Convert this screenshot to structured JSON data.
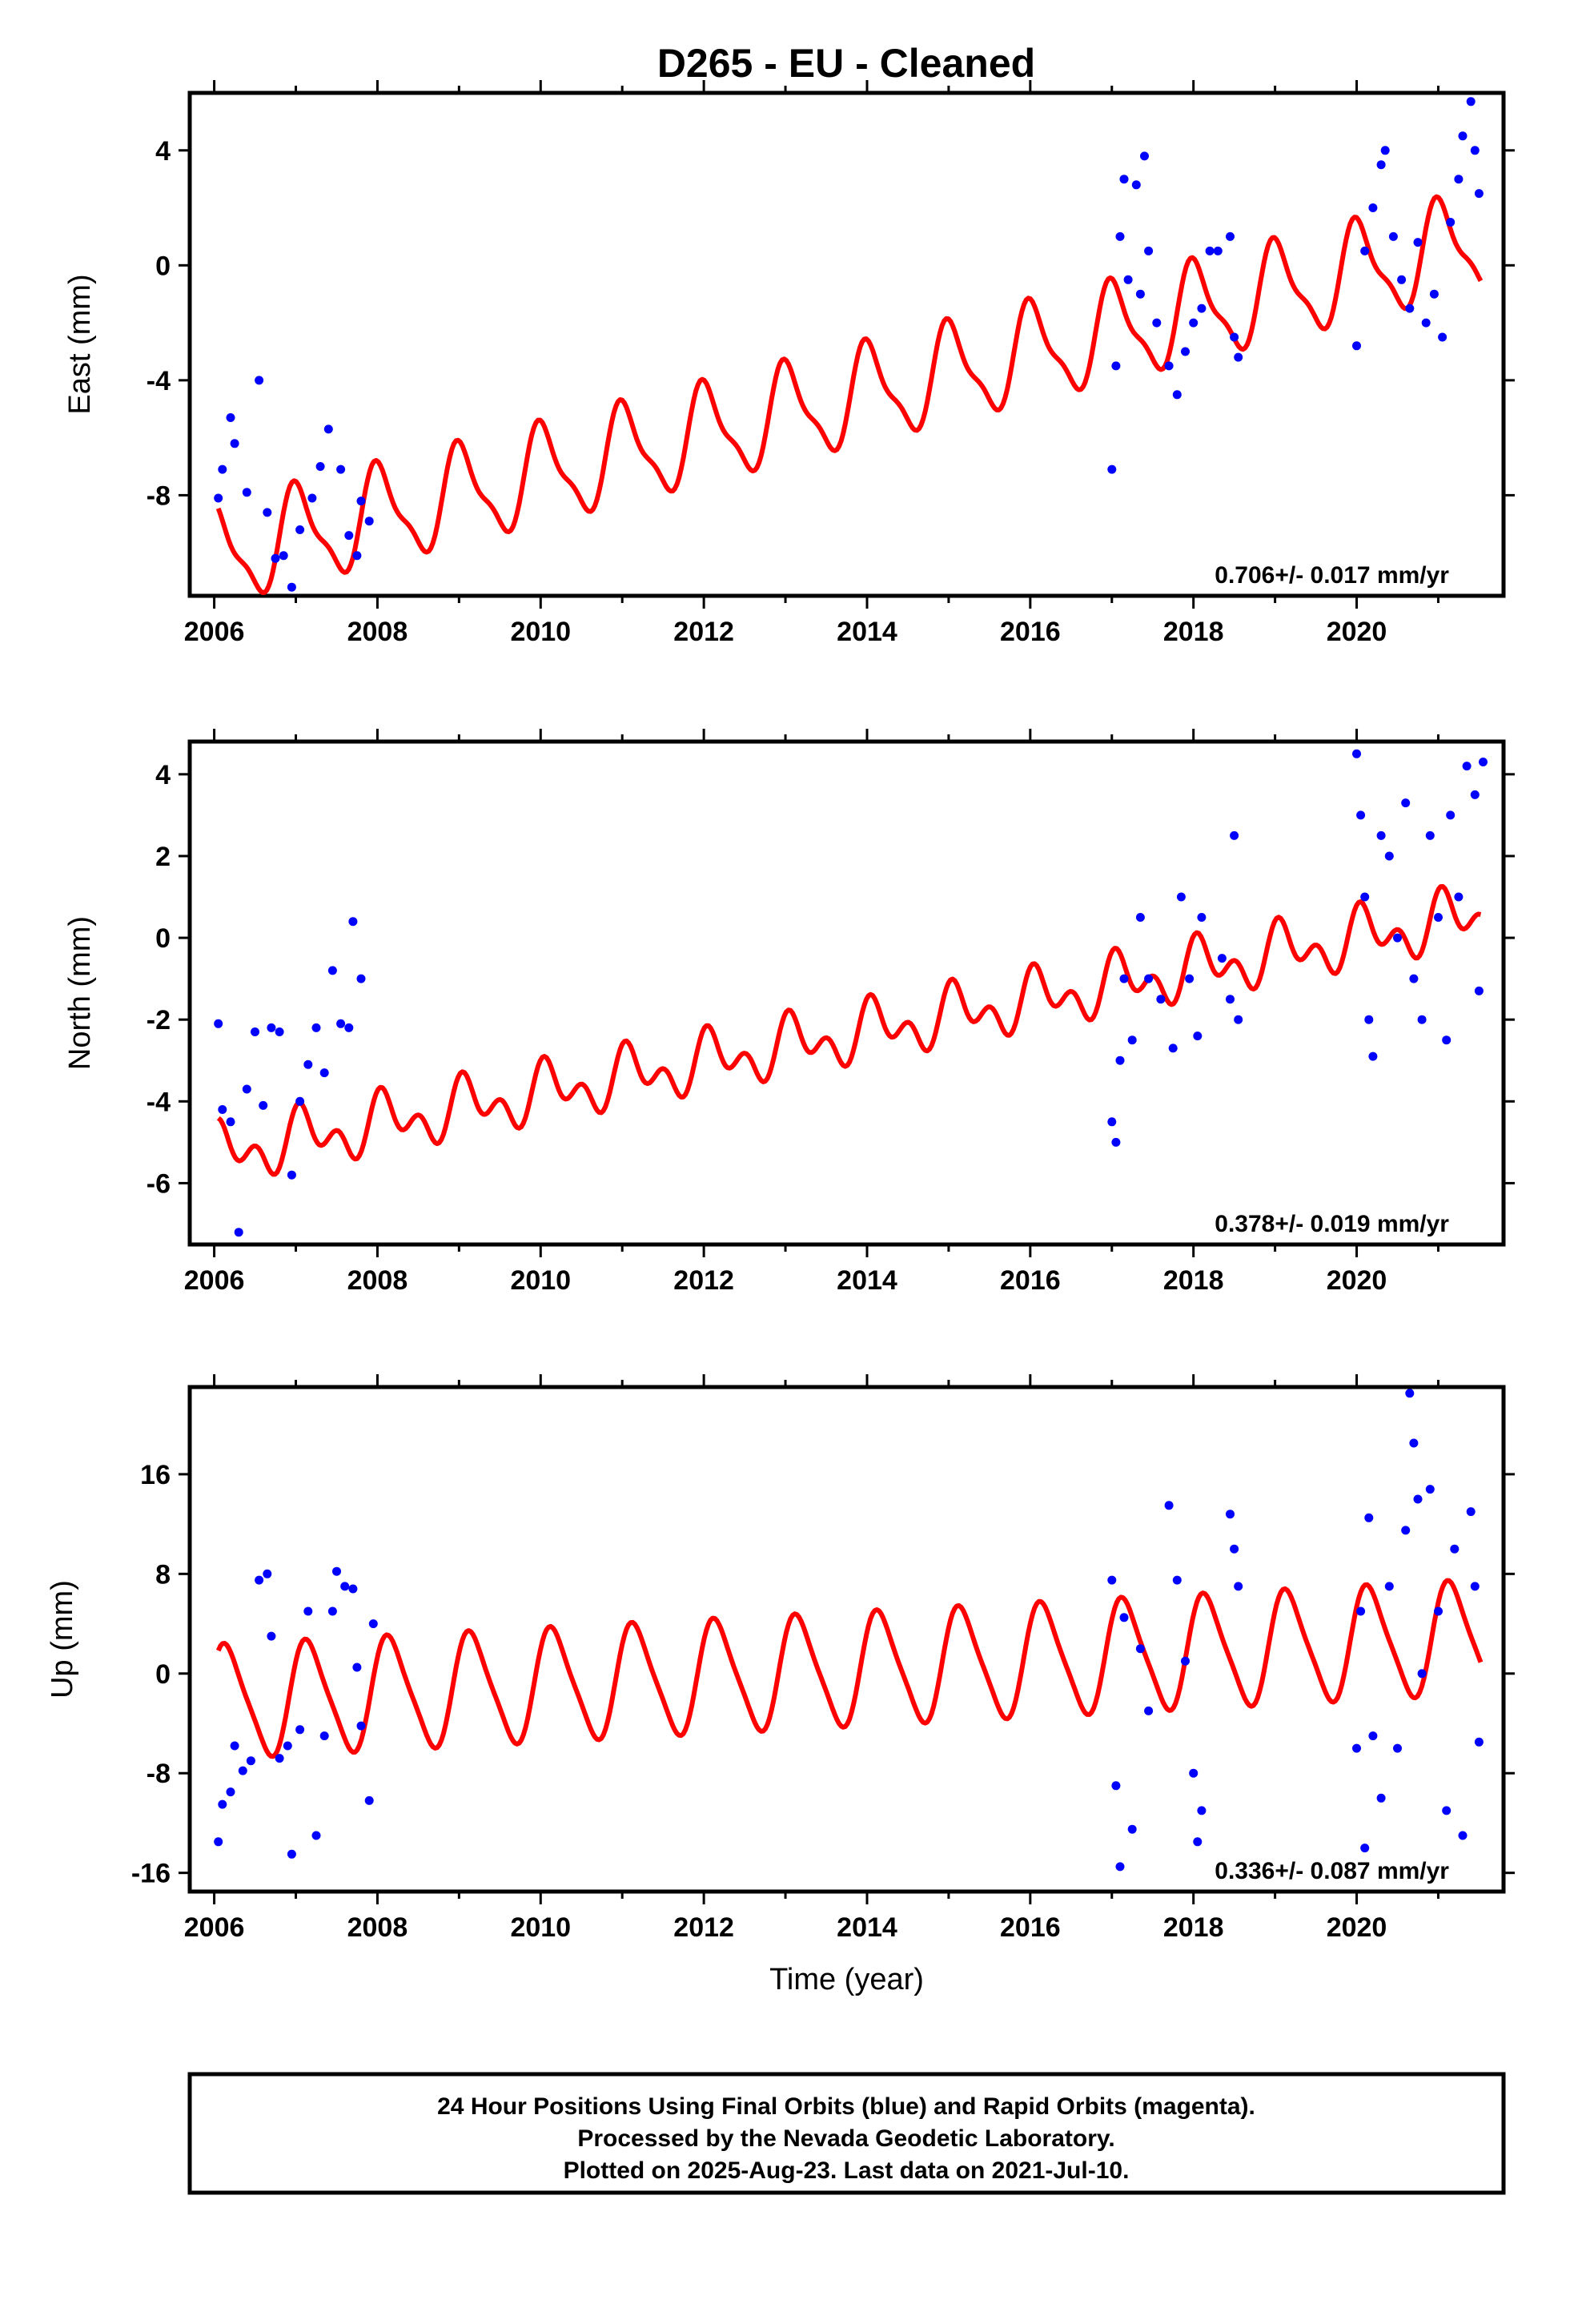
{
  "chart_title": "D265  - EU - Cleaned",
  "colors": {
    "points": "#0000ff",
    "model": "#ff0000",
    "frame": "#000000"
  },
  "caption": {
    "line1": "24 Hour Positions Using Final Orbits (blue) and Rapid Orbits (magenta).",
    "line2": "Processed by the Nevada Geodetic Laboratory.",
    "line3": "Plotted on 2025-Aug-23. Last data on 2021-Jul-10."
  },
  "chart_data": [
    {
      "type": "scatter",
      "ylabel": "East (mm)",
      "xlabel": "",
      "xlim": [
        2005.7,
        2021.8
      ],
      "ylim": [
        -11.5,
        6.0
      ],
      "xticks": [
        "2006",
        "2008",
        "2010",
        "2012",
        "2014",
        "2016",
        "2018",
        "2020"
      ],
      "yticks": [
        "4",
        "0",
        "-4",
        "-8"
      ],
      "rate_label": "0.706+/- 0.017 mm/yr",
      "model": {
        "y0": -10.1,
        "rate": 0.706,
        "amp_annual": 1.6,
        "phase_annual": 1.4,
        "amp_semi": 0.5,
        "phase_semi": 2.4
      },
      "series": [
        {
          "values": [
            [
              2006.05,
              -8.1
            ],
            [
              2006.1,
              -7.1
            ],
            [
              2006.2,
              -5.3
            ],
            [
              2006.25,
              -6.2
            ],
            [
              2006.4,
              -7.9
            ],
            [
              2006.55,
              -4.0
            ],
            [
              2006.65,
              -8.6
            ],
            [
              2006.75,
              -10.2
            ],
            [
              2006.85,
              -10.1
            ],
            [
              2006.95,
              -11.2
            ],
            [
              2007.05,
              -9.2
            ],
            [
              2007.2,
              -8.1
            ],
            [
              2007.3,
              -7.0
            ],
            [
              2007.4,
              -5.7
            ],
            [
              2007.55,
              -7.1
            ],
            [
              2007.65,
              -9.4
            ],
            [
              2007.75,
              -10.1
            ],
            [
              2007.8,
              -8.2
            ],
            [
              2007.9,
              -8.9
            ],
            [
              2017.0,
              -7.1
            ],
            [
              2017.05,
              -3.5
            ],
            [
              2017.1,
              1.0
            ],
            [
              2017.15,
              3.0
            ],
            [
              2017.2,
              -0.5
            ],
            [
              2017.3,
              2.8
            ],
            [
              2017.35,
              -1.0
            ],
            [
              2017.4,
              3.8
            ],
            [
              2017.45,
              0.5
            ],
            [
              2017.55,
              -2.0
            ],
            [
              2017.7,
              -3.5
            ],
            [
              2017.8,
              -4.5
            ],
            [
              2017.9,
              -3.0
            ],
            [
              2018.0,
              -2.0
            ],
            [
              2018.1,
              -1.5
            ],
            [
              2018.2,
              0.5
            ],
            [
              2018.3,
              0.5
            ],
            [
              2018.45,
              1.0
            ],
            [
              2018.5,
              -2.5
            ],
            [
              2018.55,
              -3.2
            ],
            [
              2020.0,
              -2.8
            ],
            [
              2020.1,
              0.5
            ],
            [
              2020.2,
              2.0
            ],
            [
              2020.3,
              3.5
            ],
            [
              2020.35,
              4.0
            ],
            [
              2020.45,
              1.0
            ],
            [
              2020.55,
              -0.5
            ],
            [
              2020.65,
              -1.5
            ],
            [
              2020.75,
              0.8
            ],
            [
              2020.85,
              -2.0
            ],
            [
              2020.95,
              -1.0
            ],
            [
              2021.05,
              -2.5
            ],
            [
              2021.15,
              1.5
            ],
            [
              2021.25,
              3.0
            ],
            [
              2021.3,
              4.5
            ],
            [
              2021.4,
              5.7
            ],
            [
              2021.45,
              4.0
            ],
            [
              2021.5,
              2.5
            ]
          ]
        }
      ]
    },
    {
      "type": "scatter",
      "ylabel": "North (mm)",
      "xlabel": "",
      "xlim": [
        2005.7,
        2021.8
      ],
      "ylim": [
        -7.5,
        4.8
      ],
      "xticks": [
        "2006",
        "2008",
        "2010",
        "2012",
        "2014",
        "2016",
        "2018",
        "2020"
      ],
      "yticks": [
        "4",
        "2",
        "0",
        "-2",
        "-4",
        "-6"
      ],
      "rate_label": "0.378+/- 0.019 mm/yr",
      "model": {
        "y0": -5.3,
        "rate": 0.378,
        "amp_annual": 0.5,
        "phase_annual": 0.9,
        "amp_semi": 0.45,
        "phase_semi": 1.3
      },
      "series": [
        {
          "values": [
            [
              2006.05,
              -2.1
            ],
            [
              2006.1,
              -4.2
            ],
            [
              2006.2,
              -4.5
            ],
            [
              2006.3,
              -7.2
            ],
            [
              2006.4,
              -3.7
            ],
            [
              2006.5,
              -2.3
            ],
            [
              2006.6,
              -4.1
            ],
            [
              2006.7,
              -2.2
            ],
            [
              2006.8,
              -2.3
            ],
            [
              2006.95,
              -5.8
            ],
            [
              2007.05,
              -4.0
            ],
            [
              2007.15,
              -3.1
            ],
            [
              2007.25,
              -2.2
            ],
            [
              2007.35,
              -3.3
            ],
            [
              2007.45,
              -0.8
            ],
            [
              2007.55,
              -2.1
            ],
            [
              2007.65,
              -2.2
            ],
            [
              2007.7,
              0.4
            ],
            [
              2007.8,
              -1.0
            ],
            [
              2017.0,
              -4.5
            ],
            [
              2017.05,
              -5.0
            ],
            [
              2017.1,
              -3.0
            ],
            [
              2017.15,
              -1.0
            ],
            [
              2017.25,
              -2.5
            ],
            [
              2017.35,
              0.5
            ],
            [
              2017.45,
              -1.0
            ],
            [
              2017.6,
              -1.5
            ],
            [
              2017.75,
              -2.7
            ],
            [
              2017.85,
              1.0
            ],
            [
              2017.95,
              -1.0
            ],
            [
              2018.05,
              -2.4
            ],
            [
              2018.1,
              0.5
            ],
            [
              2018.35,
              -0.5
            ],
            [
              2018.45,
              -1.5
            ],
            [
              2018.5,
              2.5
            ],
            [
              2018.55,
              -2.0
            ],
            [
              2020.0,
              4.5
            ],
            [
              2020.05,
              3.0
            ],
            [
              2020.1,
              1.0
            ],
            [
              2020.15,
              -2.0
            ],
            [
              2020.2,
              -2.9
            ],
            [
              2020.3,
              2.5
            ],
            [
              2020.4,
              2.0
            ],
            [
              2020.5,
              0.0
            ],
            [
              2020.6,
              3.3
            ],
            [
              2020.7,
              -1.0
            ],
            [
              2020.8,
              -2.0
            ],
            [
              2020.9,
              2.5
            ],
            [
              2021.0,
              0.5
            ],
            [
              2021.1,
              -2.5
            ],
            [
              2021.15,
              3.0
            ],
            [
              2021.25,
              1.0
            ],
            [
              2021.35,
              4.2
            ],
            [
              2021.45,
              3.5
            ],
            [
              2021.5,
              -1.3
            ],
            [
              2021.55,
              4.3
            ]
          ]
        }
      ]
    },
    {
      "type": "scatter",
      "ylabel": "Up (mm)",
      "xlabel": "Time (year)",
      "xlim": [
        2005.7,
        2021.8
      ],
      "ylim": [
        -17.5,
        23.0
      ],
      "xticks": [
        "2006",
        "2008",
        "2010",
        "2012",
        "2014",
        "2016",
        "2018",
        "2020"
      ],
      "yticks": [
        "16",
        "8",
        "0",
        "-8",
        "-16"
      ],
      "rate_label": "0.336+/- 0.087 mm/yr",
      "model": {
        "y0": -2.3,
        "rate": 0.336,
        "amp_annual": 4.4,
        "phase_annual": 0.55,
        "amp_semi": 0.8,
        "phase_semi": 1.0
      },
      "series": [
        {
          "values": [
            [
              2006.05,
              -13.5
            ],
            [
              2006.1,
              -10.5
            ],
            [
              2006.2,
              -9.5
            ],
            [
              2006.25,
              -5.8
            ],
            [
              2006.35,
              -7.8
            ],
            [
              2006.45,
              -7.0
            ],
            [
              2006.55,
              7.5
            ],
            [
              2006.65,
              8.0
            ],
            [
              2006.7,
              3.0
            ],
            [
              2006.8,
              -6.8
            ],
            [
              2006.9,
              -5.8
            ],
            [
              2006.95,
              -14.5
            ],
            [
              2007.05,
              -4.5
            ],
            [
              2007.15,
              5.0
            ],
            [
              2007.25,
              -13.0
            ],
            [
              2007.35,
              -5.0
            ],
            [
              2007.45,
              5.0
            ],
            [
              2007.5,
              8.2
            ],
            [
              2007.6,
              7.0
            ],
            [
              2007.7,
              6.8
            ],
            [
              2007.75,
              0.5
            ],
            [
              2007.8,
              -4.2
            ],
            [
              2007.9,
              -10.2
            ],
            [
              2007.95,
              4.0
            ],
            [
              2017.0,
              7.5
            ],
            [
              2017.05,
              -9.0
            ],
            [
              2017.1,
              -15.5
            ],
            [
              2017.15,
              4.5
            ],
            [
              2017.25,
              -12.5
            ],
            [
              2017.35,
              2.0
            ],
            [
              2017.45,
              -3.0
            ],
            [
              2017.7,
              13.5
            ],
            [
              2017.8,
              7.5
            ],
            [
              2017.9,
              1.0
            ],
            [
              2018.0,
              -8.0
            ],
            [
              2018.05,
              -13.5
            ],
            [
              2018.1,
              -11.0
            ],
            [
              2018.45,
              12.8
            ],
            [
              2018.5,
              10.0
            ],
            [
              2018.55,
              7.0
            ],
            [
              2020.0,
              -6.0
            ],
            [
              2020.05,
              5.0
            ],
            [
              2020.1,
              -14.0
            ],
            [
              2020.15,
              12.5
            ],
            [
              2020.2,
              -5.0
            ],
            [
              2020.3,
              -10.0
            ],
            [
              2020.4,
              7.0
            ],
            [
              2020.5,
              -6.0
            ],
            [
              2020.6,
              11.5
            ],
            [
              2020.65,
              22.5
            ],
            [
              2020.7,
              18.5
            ],
            [
              2020.75,
              14.0
            ],
            [
              2020.8,
              0.0
            ],
            [
              2020.9,
              14.8
            ],
            [
              2021.0,
              5.0
            ],
            [
              2021.1,
              -11.0
            ],
            [
              2021.2,
              10.0
            ],
            [
              2021.3,
              -13.0
            ],
            [
              2021.4,
              13.0
            ],
            [
              2021.45,
              7.0
            ],
            [
              2021.5,
              -5.5
            ]
          ]
        }
      ]
    }
  ]
}
